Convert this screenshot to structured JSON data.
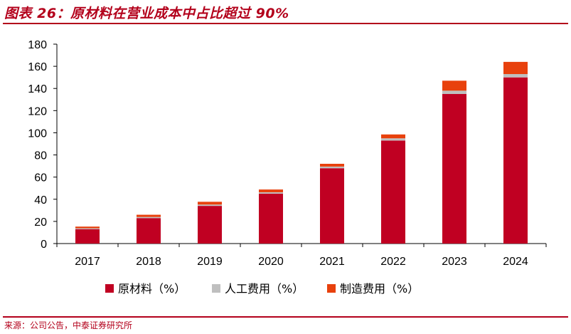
{
  "figure": {
    "title": "图表 26：原材料在营业成本中占比超过 90%",
    "source": "来源：公司公告，中泰证券研究所"
  },
  "chart_data": {
    "type": "bar",
    "stacked": true,
    "categories": [
      "2017",
      "2018",
      "2019",
      "2020",
      "2021",
      "2022",
      "2023",
      "2024"
    ],
    "series": [
      {
        "name": "原材料（%）",
        "color": "#c00022",
        "values": [
          13,
          23,
          34,
          45,
          68,
          93,
          135,
          150
        ]
      },
      {
        "name": "人工费用（%）",
        "color": "#bfbfbf",
        "values": [
          0.8,
          1,
          1.2,
          1.3,
          1.5,
          2,
          3,
          3
        ]
      },
      {
        "name": "制造费用（%）",
        "color": "#e8410d",
        "values": [
          1.5,
          2,
          2.5,
          2.5,
          2.5,
          3.5,
          9,
          11
        ]
      }
    ],
    "ylim": [
      0,
      180
    ],
    "yticks": [
      0,
      20,
      40,
      60,
      80,
      100,
      120,
      140,
      160,
      180
    ],
    "xlabel": "",
    "ylabel": "",
    "grid": false,
    "legend_position": "bottom"
  }
}
